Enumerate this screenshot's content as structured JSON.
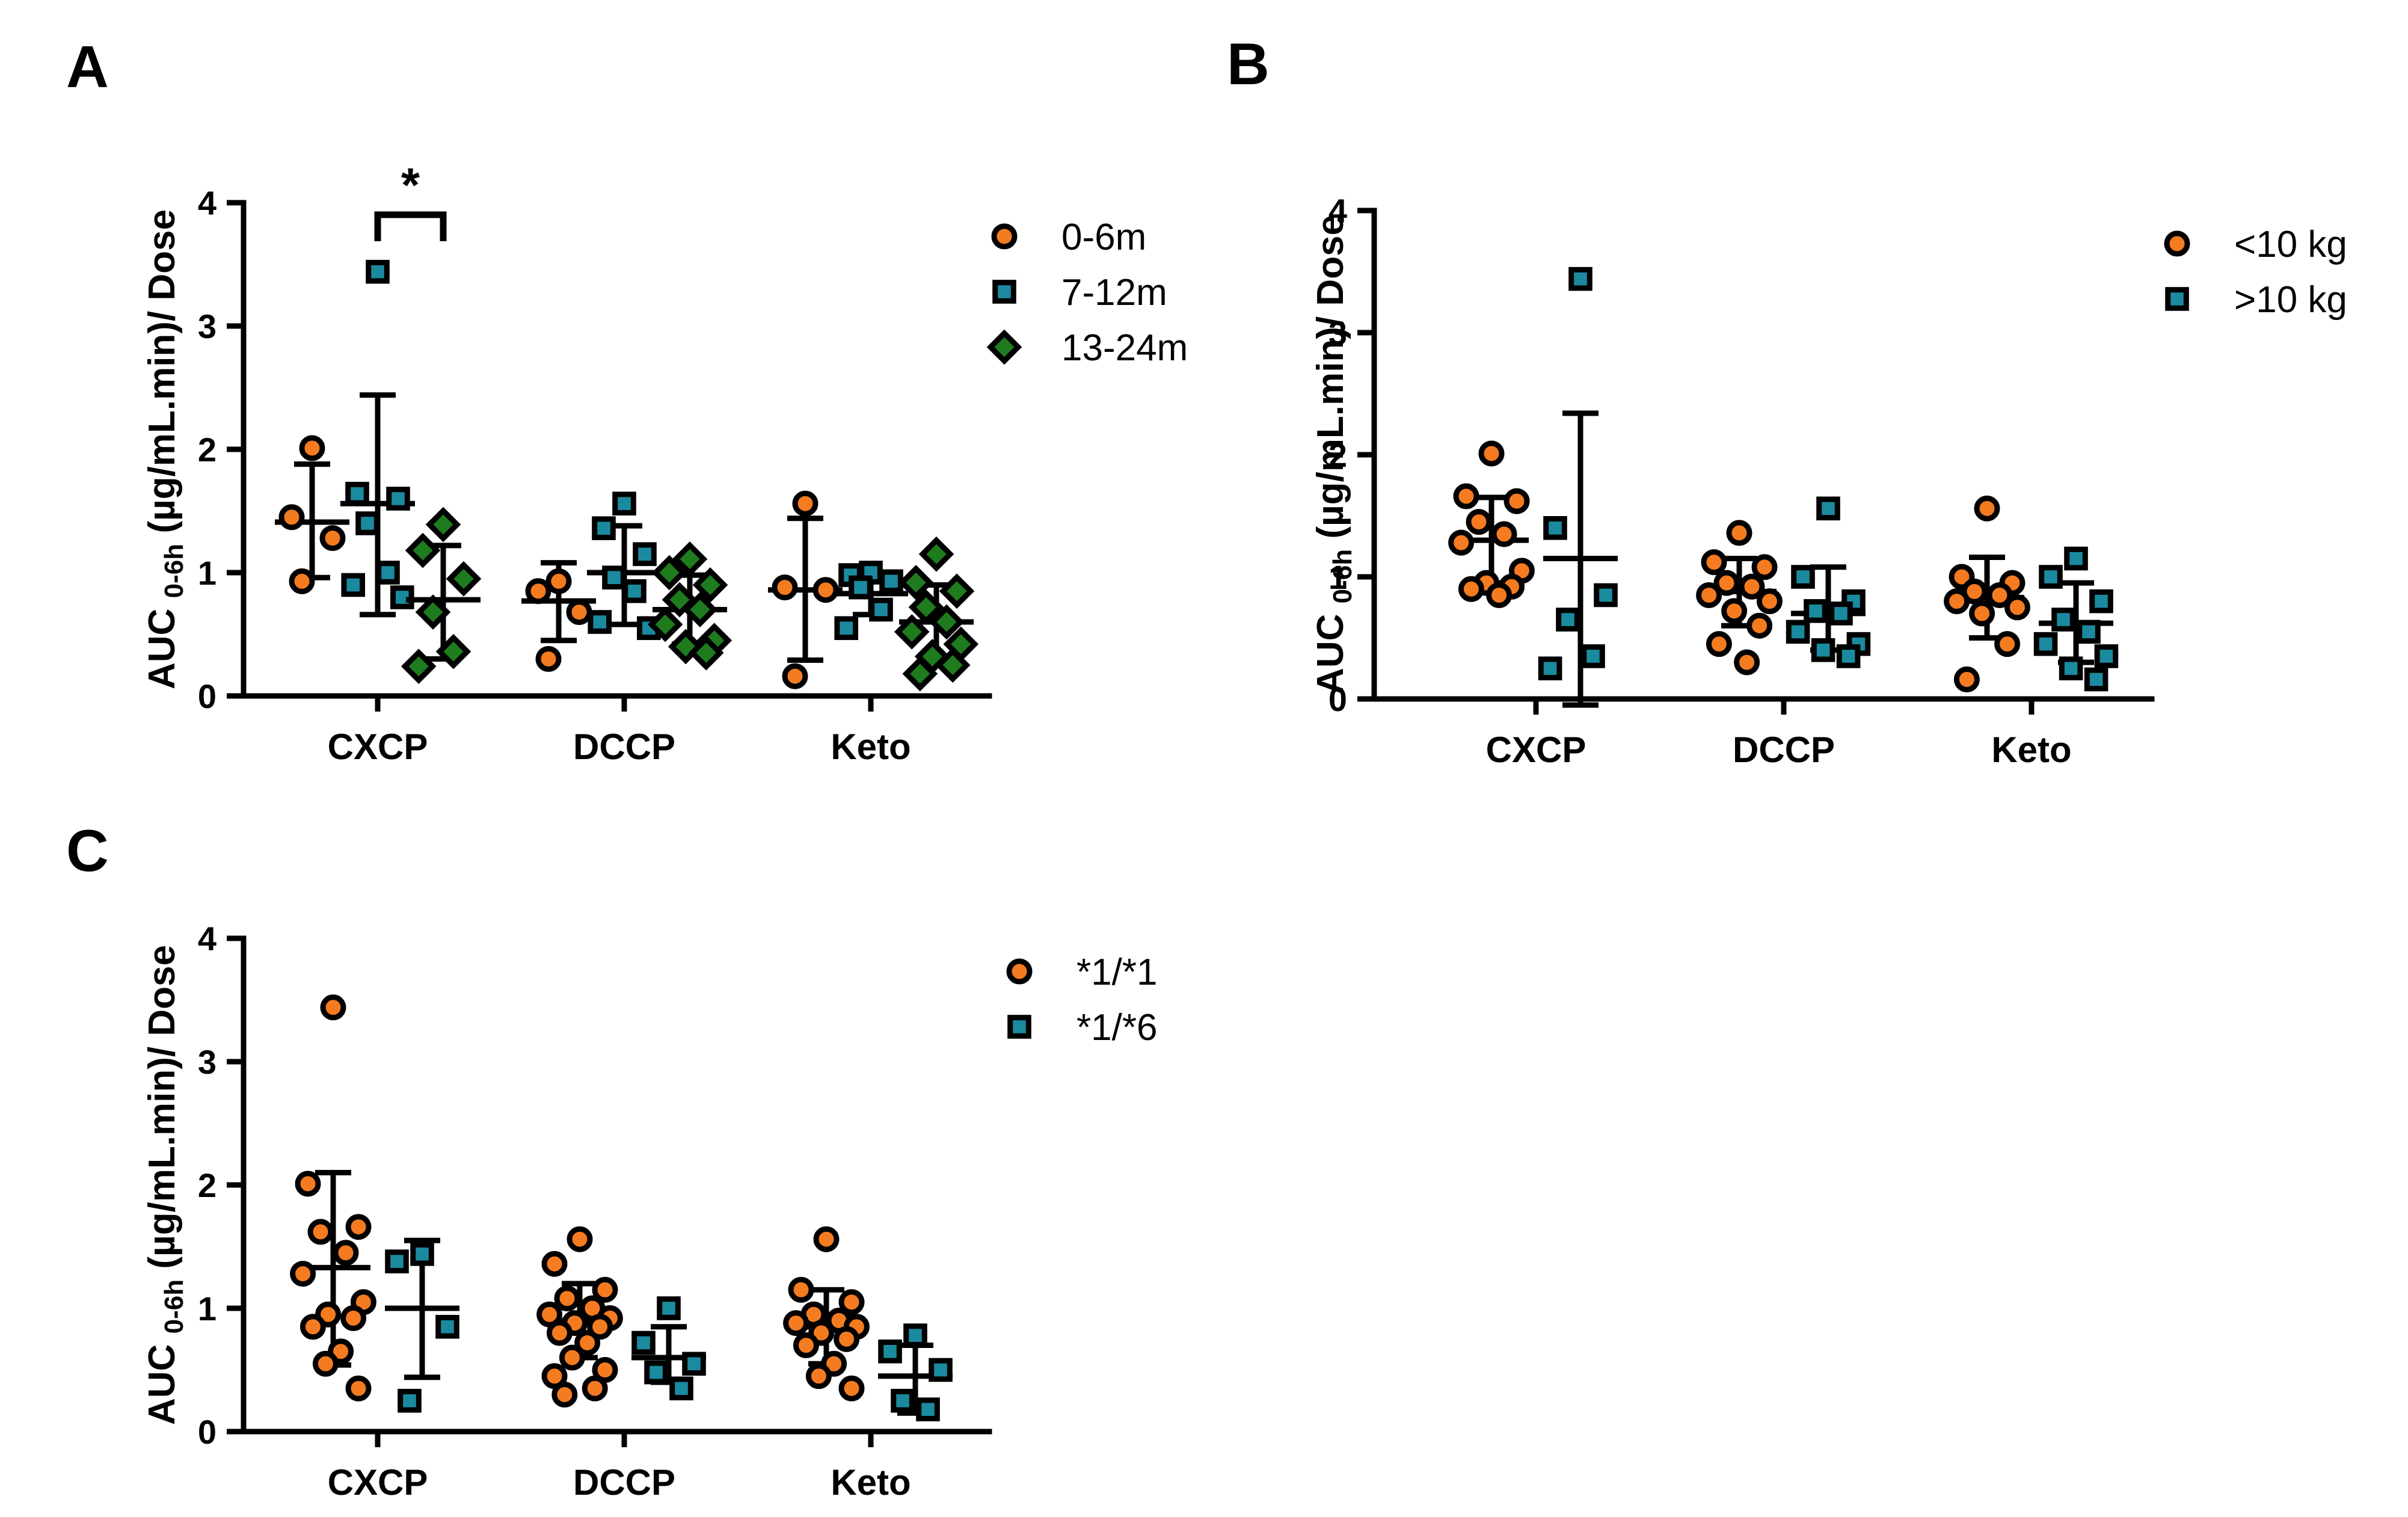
{
  "colors": {
    "orange": "#F47B20",
    "teal": "#1B8A9E",
    "green": "#1E7B1E",
    "axis": "#000000"
  },
  "chart_data": [
    {
      "panel": "A",
      "type": "scatter",
      "ylabel": "AUC 0-6h (µg/mL.min)/ Dose",
      "ylabel_main": "AUC",
      "ylabel_sub": "0-6h",
      "ylabel_rest": "(µg/mL.min)/ Dose",
      "ylim": [
        0,
        4
      ],
      "yticks": [
        0,
        1,
        2,
        3,
        4
      ],
      "categories": [
        "CXCP",
        "DCCP",
        "Keto"
      ],
      "legend_position": "top-right",
      "annotation": {
        "text": "*",
        "between": [
          "0-6m",
          "7-12m",
          "13-24m"
        ],
        "category": "CXCP",
        "from_series": 1,
        "to_series": 2,
        "y": 4.0
      },
      "series": [
        {
          "name": "0-6m",
          "marker": "circle",
          "color": "#F47B20",
          "groups": [
            {
              "category": "CXCP",
              "points": [
                2.01,
                1.45,
                1.28,
                0.93
              ],
              "mean": 1.41,
              "sd_low": 0.96,
              "sd_high": 1.88
            },
            {
              "category": "DCCP",
              "points": [
                0.93,
                0.85,
                0.68,
                0.3
              ],
              "mean": 0.77,
              "sd_low": 0.45,
              "sd_high": 1.08
            },
            {
              "category": "Keto",
              "points": [
                1.56,
                0.88,
                0.86,
                0.16
              ],
              "mean": 0.86,
              "sd_low": 0.29,
              "sd_high": 1.44
            }
          ]
        },
        {
          "name": "7-12m",
          "marker": "square",
          "color": "#1B8A9E",
          "groups": [
            {
              "category": "CXCP",
              "points": [
                3.44,
                1.64,
                1.6,
                1.4,
                1.0,
                0.9,
                0.8
              ],
              "mean": 1.56,
              "sd_low": 0.66,
              "sd_high": 2.44
            },
            {
              "category": "DCCP",
              "points": [
                1.56,
                1.36,
                1.15,
                0.96,
                0.85,
                0.6,
                0.55
              ],
              "mean": 1.0,
              "sd_low": 0.58,
              "sd_high": 1.38
            },
            {
              "category": "Keto",
              "points": [
                1.0,
                0.98,
                0.93,
                0.88,
                0.7,
                0.55
              ],
              "mean": 0.83,
              "sd_low": 0.66,
              "sd_high": 1.0
            }
          ]
        },
        {
          "name": "13-24m",
          "marker": "diamond",
          "color": "#1E7B1E",
          "groups": [
            {
              "category": "CXCP",
              "points": [
                1.39,
                1.18,
                0.95,
                0.68,
                0.36,
                0.24
              ],
              "mean": 0.78,
              "sd_low": 0.3,
              "sd_high": 1.22
            },
            {
              "category": "DCCP",
              "points": [
                1.11,
                1.0,
                0.9,
                0.78,
                0.7,
                0.58,
                0.45,
                0.4,
                0.35
              ],
              "mean": 0.7,
              "sd_low": 0.42,
              "sd_high": 0.98
            },
            {
              "category": "Keto",
              "points": [
                1.15,
                0.92,
                0.85,
                0.72,
                0.6,
                0.52,
                0.42,
                0.32,
                0.25,
                0.18
              ],
              "mean": 0.6,
              "sd_low": 0.3,
              "sd_high": 0.9
            }
          ]
        }
      ]
    },
    {
      "panel": "B",
      "type": "scatter",
      "ylabel": "AUC 0-6h (µg/mL.min)/ Dose",
      "ylabel_main": "AUC",
      "ylabel_sub": "0-6h",
      "ylabel_rest": "(µg/mL.min)/ Dose",
      "ylim": [
        0,
        4
      ],
      "yticks": [
        0,
        1,
        2,
        3,
        4
      ],
      "categories": [
        "CXCP",
        "DCCP",
        "Keto"
      ],
      "legend_position": "top-right",
      "series": [
        {
          "name": "<10 kg",
          "marker": "circle",
          "color": "#F47B20",
          "groups": [
            {
              "category": "CXCP",
              "points": [
                2.01,
                1.66,
                1.62,
                1.45,
                1.35,
                1.28,
                1.05,
                0.95,
                0.92,
                0.9,
                0.85
              ],
              "mean": 1.3,
              "sd_low": 0.95,
              "sd_high": 1.65
            },
            {
              "category": "DCCP",
              "points": [
                1.36,
                1.12,
                1.08,
                0.95,
                0.92,
                0.85,
                0.8,
                0.72,
                0.6,
                0.45,
                0.3
              ],
              "mean": 0.88,
              "sd_low": 0.6,
              "sd_high": 1.15
            },
            {
              "category": "Keto",
              "points": [
                1.56,
                1.0,
                0.95,
                0.88,
                0.85,
                0.8,
                0.75,
                0.7,
                0.45,
                0.16
              ],
              "mean": 0.83,
              "sd_low": 0.5,
              "sd_high": 1.16
            }
          ]
        },
        {
          "name": ">10 kg",
          "marker": "square",
          "color": "#1B8A9E",
          "groups": [
            {
              "category": "CXCP",
              "points": [
                3.44,
                1.4,
                0.85,
                0.65,
                0.35,
                0.25
              ],
              "mean": 1.15,
              "sd_low": -0.05,
              "sd_high": 2.34
            },
            {
              "category": "DCCP",
              "points": [
                1.56,
                1.0,
                0.8,
                0.72,
                0.7,
                0.55,
                0.45,
                0.4,
                0.35
              ],
              "mean": 0.7,
              "sd_low": 0.4,
              "sd_high": 1.08
            },
            {
              "category": "Keto",
              "points": [
                1.15,
                1.0,
                0.8,
                0.65,
                0.55,
                0.45,
                0.35,
                0.25,
                0.16
              ],
              "mean": 0.62,
              "sd_low": 0.3,
              "sd_high": 0.95
            }
          ]
        }
      ]
    },
    {
      "panel": "C",
      "type": "scatter",
      "ylabel": "AUC 0-6h (µg/mL.min)/ Dose",
      "ylabel_main": "AUC",
      "ylabel_sub": "0-6h",
      "ylabel_rest": "(µg/mL.min)/ Dose",
      "ylim": [
        0,
        4
      ],
      "yticks": [
        0,
        1,
        2,
        3,
        4
      ],
      "categories": [
        "CXCP",
        "DCCP",
        "Keto"
      ],
      "legend_position": "top-right",
      "series": [
        {
          "name": "*1/*1",
          "marker": "circle",
          "color": "#F47B20",
          "groups": [
            {
              "category": "CXCP",
              "points": [
                3.44,
                2.01,
                1.66,
                1.62,
                1.45,
                1.28,
                1.05,
                0.95,
                0.92,
                0.85,
                0.65,
                0.55,
                0.35
              ],
              "mean": 1.33,
              "sd_low": 0.54,
              "sd_high": 2.1
            },
            {
              "category": "DCCP",
              "points": [
                1.56,
                1.36,
                1.15,
                1.08,
                1.0,
                0.95,
                0.92,
                0.88,
                0.85,
                0.8,
                0.72,
                0.6,
                0.5,
                0.45,
                0.35,
                0.3
              ],
              "mean": 0.9,
              "sd_low": 0.6,
              "sd_high": 1.2
            },
            {
              "category": "Keto",
              "points": [
                1.56,
                1.15,
                1.05,
                0.95,
                0.9,
                0.88,
                0.85,
                0.8,
                0.75,
                0.7,
                0.55,
                0.45,
                0.35
              ],
              "mean": 0.85,
              "sd_low": 0.55,
              "sd_high": 1.15
            }
          ]
        },
        {
          "name": "*1/*6",
          "marker": "square",
          "color": "#1B8A9E",
          "groups": [
            {
              "category": "CXCP",
              "points": [
                1.44,
                1.38,
                0.85,
                0.25
              ],
              "mean": 1.0,
              "sd_low": 0.44,
              "sd_high": 1.55
            },
            {
              "category": "DCCP",
              "points": [
                1.0,
                0.72,
                0.55,
                0.48,
                0.35
              ],
              "mean": 0.6,
              "sd_low": 0.4,
              "sd_high": 0.85
            },
            {
              "category": "Keto",
              "points": [
                0.78,
                0.65,
                0.5,
                0.25,
                0.18
              ],
              "mean": 0.45,
              "sd_low": 0.15,
              "sd_high": 0.7
            }
          ]
        }
      ]
    }
  ]
}
